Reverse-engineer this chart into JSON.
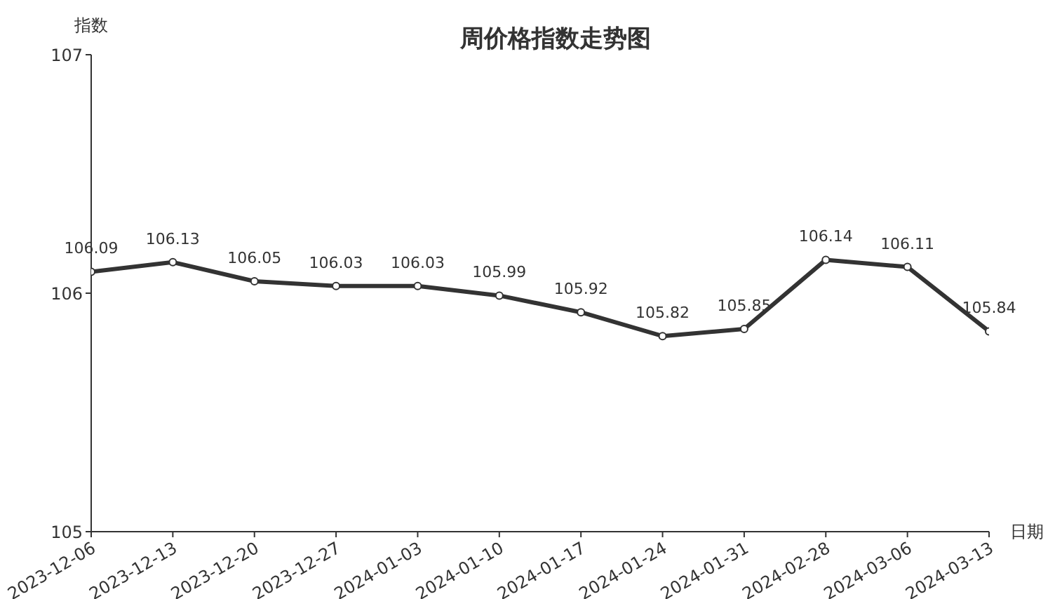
{
  "chart_data": {
    "type": "line",
    "title": "周价格指数走势图",
    "xlabel": "日期",
    "ylabel": "指数",
    "categories": [
      "2023-12-06",
      "2023-12-13",
      "2023-12-20",
      "2023-12-27",
      "2024-01-03",
      "2024-01-10",
      "2024-01-17",
      "2024-01-24",
      "2024-01-31",
      "2024-02-28",
      "2024-03-06",
      "2024-03-13"
    ],
    "series": [
      {
        "color": "#333333",
        "values": [
          106.09,
          106.13,
          106.05,
          106.03,
          106.03,
          105.99,
          105.92,
          105.82,
          105.85,
          106.14,
          106.11,
          105.84
        ]
      }
    ],
    "ylim": [
      105,
      107
    ],
    "yticks": [
      105,
      106,
      107
    ],
    "marker": "circle",
    "line_style": "solid",
    "data_labels": true
  }
}
